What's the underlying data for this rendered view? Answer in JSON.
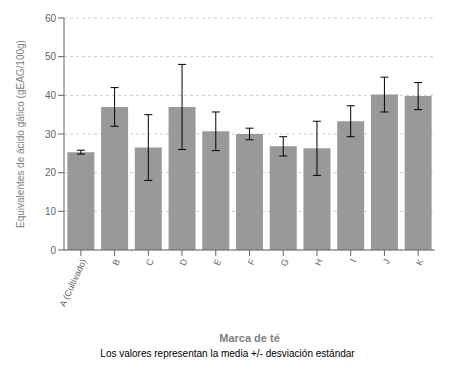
{
  "chart_data": {
    "type": "bar",
    "categories": [
      "A (Cultivado)",
      "B",
      "C",
      "D",
      "E",
      "F",
      "G",
      "H",
      "I",
      "J",
      "K"
    ],
    "values": [
      25.3,
      37.0,
      26.5,
      37.0,
      30.7,
      30.0,
      26.8,
      26.3,
      33.3,
      40.2,
      39.8
    ],
    "errors": [
      0.5,
      5.0,
      8.5,
      11.0,
      5.0,
      1.5,
      2.5,
      7.0,
      4.0,
      4.5,
      3.5
    ],
    "color": "#999999",
    "ylim": [
      0,
      60
    ],
    "yticks": [
      0,
      10,
      20,
      30,
      40,
      50,
      60
    ],
    "ylabel": "Equivalentes de ácido gálico (gEAG/100g)",
    "xlabel": "Marca de té",
    "annotation": "Los valores representan la media +/- desviación estándar",
    "grid": true
  }
}
